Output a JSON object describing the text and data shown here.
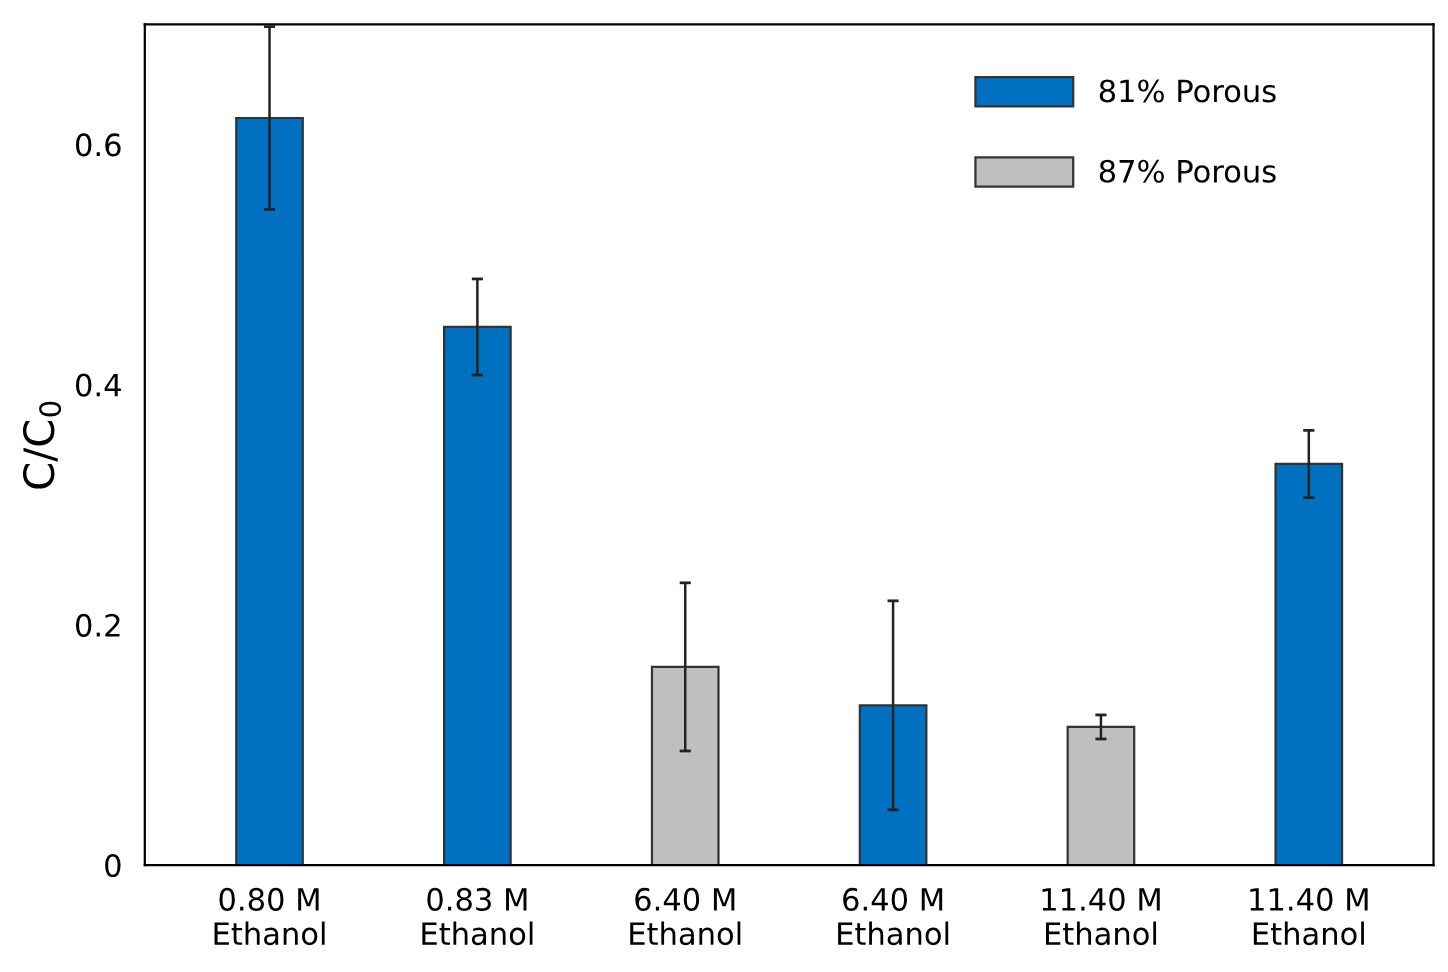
{
  "chart_data": {
    "type": "bar",
    "ylabel": "C/C$_{0}$",
    "categories": [
      "0.80 M\nEthanol",
      "0.83 M\nEthanol",
      "6.40 M\nEthanol",
      "6.40 M\nEthanol",
      "11.40 M\nEthanol",
      "11.40 M\nEthanol"
    ],
    "series": [
      {
        "name": "81% Porous",
        "color": "#0070c0",
        "values": [
          0.622,
          0.448,
          null,
          0.133,
          null,
          0.334
        ],
        "errors": [
          0.076,
          0.04,
          null,
          0.087,
          null,
          0.028
        ]
      },
      {
        "name": "87% Porous",
        "color": "#bfbfbf",
        "values": [
          null,
          null,
          0.165,
          null,
          0.115,
          null
        ],
        "errors": [
          null,
          null,
          0.07,
          null,
          0.01,
          null
        ]
      }
    ],
    "ylim": [
      0,
      0.7
    ],
    "yticks": [
      0,
      0.2,
      0.4,
      0.6
    ],
    "grid": false,
    "legend": "top right"
  }
}
